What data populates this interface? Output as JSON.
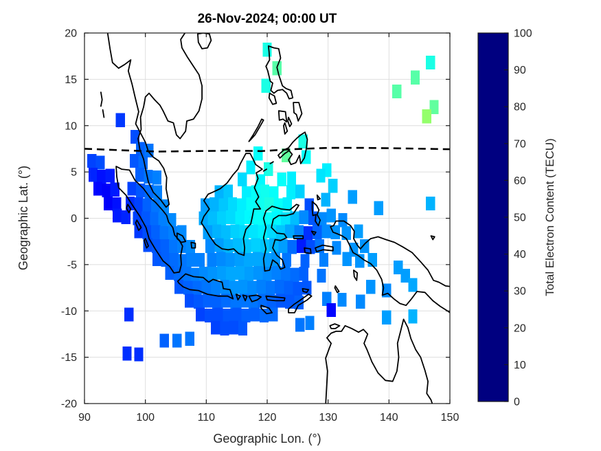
{
  "figure": {
    "title": "26-Nov-2024; 00:00 UT",
    "xlabel": "Geographic Lon. (°)",
    "ylabel": "Geographic Lat. (°)"
  },
  "axes": {
    "xlim": [
      90,
      150
    ],
    "ylim": [
      -20,
      20
    ],
    "x_ticks": [
      90,
      100,
      110,
      120,
      130,
      140,
      150
    ],
    "y_ticks": [
      20,
      15,
      10,
      5,
      0,
      -5,
      -10,
      -15,
      -20
    ],
    "grid": true
  },
  "colorbar": {
    "label": "Total Electron Content (TECU)",
    "min": 0,
    "max": 100,
    "ticks": [
      0,
      10,
      20,
      30,
      40,
      50,
      60,
      70,
      80,
      90,
      100
    ],
    "colormap": "jet"
  },
  "colors": {
    "background": "#ffffff",
    "grid": "#dedede",
    "coastline": "#000000",
    "dashed_line": "#000000",
    "axis_box": "#1a1a1a",
    "tick_text": "#262626"
  },
  "chart_data": {
    "type": "heatmap",
    "title": "26-Nov-2024; 00:00 UT",
    "xlabel": "Geographic Lon. (°)",
    "ylabel": "Geographic Lat. (°)",
    "value_label": "Total Electron Content (TECU)",
    "value_range": [
      0,
      100
    ],
    "cell_size_deg": 1.5,
    "legend_position": "right-colorbar",
    "dashed_line_note": "magnetic dip equator",
    "dashed_line": [
      [
        90,
        7.5
      ],
      [
        96,
        7.35
      ],
      [
        102,
        7.2
      ],
      [
        108,
        7.25
      ],
      [
        114,
        7.3
      ],
      [
        119,
        7.25
      ],
      [
        124,
        7.45
      ],
      [
        130,
        7.6
      ],
      [
        136,
        7.6
      ],
      [
        142,
        7.55
      ],
      [
        150,
        7.45
      ]
    ],
    "cells_format": [
      "lon_deg",
      "lat_deg",
      "tecu"
    ],
    "cells": [
      [
        120.0,
        18.2,
        40
      ],
      [
        146.8,
        16.8,
        40
      ],
      [
        121.6,
        16.2,
        46
      ],
      [
        144.3,
        15.2,
        46
      ],
      [
        119.8,
        14.3,
        40
      ],
      [
        141.3,
        13.7,
        46
      ],
      [
        147.4,
        12.0,
        47
      ],
      [
        146.2,
        11.0,
        52
      ],
      [
        95.9,
        10.6,
        18
      ],
      [
        98.3,
        8.8,
        20
      ],
      [
        125.9,
        8.3,
        40
      ],
      [
        99.2,
        7.5,
        22
      ],
      [
        100.6,
        7.3,
        24
      ],
      [
        118.5,
        7.0,
        38
      ],
      [
        123.1,
        6.8,
        47
      ],
      [
        126.4,
        6.6,
        38
      ],
      [
        91.2,
        6.2,
        19
      ],
      [
        92.6,
        6.0,
        20
      ],
      [
        98.2,
        6.2,
        21
      ],
      [
        99.6,
        6.0,
        23
      ],
      [
        117.3,
        5.5,
        36
      ],
      [
        120.2,
        5.3,
        40
      ],
      [
        129.8,
        5.2,
        36
      ],
      [
        91.4,
        4.7,
        16
      ],
      [
        92.8,
        4.5,
        14
      ],
      [
        94.2,
        4.6,
        15
      ],
      [
        99.1,
        4.7,
        22
      ],
      [
        100.5,
        4.5,
        24
      ],
      [
        101.9,
        4.4,
        25
      ],
      [
        115.9,
        4.2,
        34
      ],
      [
        118.9,
        4.0,
        37
      ],
      [
        122.4,
        4.2,
        38
      ],
      [
        124.0,
        4.3,
        36
      ],
      [
        128.8,
        4.6,
        35
      ],
      [
        92.2,
        3.2,
        13
      ],
      [
        93.6,
        3.0,
        12
      ],
      [
        95.0,
        3.1,
        15
      ],
      [
        97.8,
        3.2,
        19
      ],
      [
        99.2,
        3.0,
        21
      ],
      [
        100.6,
        2.9,
        23
      ],
      [
        102.0,
        2.8,
        25
      ],
      [
        112.1,
        2.8,
        30
      ],
      [
        113.6,
        2.9,
        32
      ],
      [
        116.6,
        2.7,
        36
      ],
      [
        118.1,
        2.8,
        38
      ],
      [
        119.6,
        2.9,
        39
      ],
      [
        121.1,
        2.7,
        38
      ],
      [
        123.9,
        2.8,
        36
      ],
      [
        125.4,
        2.9,
        33
      ],
      [
        130.8,
        3.5,
        33
      ],
      [
        93.9,
        1.6,
        12
      ],
      [
        95.3,
        1.5,
        14
      ],
      [
        97.5,
        1.6,
        17
      ],
      [
        98.9,
        1.5,
        19
      ],
      [
        100.3,
        1.4,
        22
      ],
      [
        101.7,
        1.3,
        24
      ],
      [
        103.1,
        1.3,
        26
      ],
      [
        109.8,
        1.4,
        28
      ],
      [
        111.3,
        1.5,
        30
      ],
      [
        112.8,
        1.4,
        32
      ],
      [
        114.3,
        1.5,
        34
      ],
      [
        115.8,
        1.4,
        36
      ],
      [
        117.3,
        1.5,
        38
      ],
      [
        118.8,
        1.4,
        39
      ],
      [
        120.3,
        1.5,
        40
      ],
      [
        121.8,
        1.4,
        38
      ],
      [
        123.3,
        1.5,
        36
      ],
      [
        126.9,
        1.4,
        20
      ],
      [
        129.6,
        2.0,
        30
      ],
      [
        134.0,
        2.3,
        28
      ],
      [
        138.3,
        1.1,
        28
      ],
      [
        146.8,
        1.6,
        30
      ],
      [
        95.4,
        0.3,
        15
      ],
      [
        96.8,
        0.1,
        16
      ],
      [
        98.7,
        0.0,
        19
      ],
      [
        100.1,
        0.0,
        21
      ],
      [
        101.5,
        -0.1,
        23
      ],
      [
        102.9,
        -0.1,
        25
      ],
      [
        104.3,
        -0.2,
        26
      ],
      [
        109.5,
        0.0,
        29
      ],
      [
        111.0,
        0.0,
        31
      ],
      [
        112.5,
        0.0,
        33
      ],
      [
        114.0,
        0.1,
        34
      ],
      [
        115.5,
        0.0,
        36
      ],
      [
        117.0,
        0.1,
        37
      ],
      [
        118.5,
        0.0,
        38
      ],
      [
        120.0,
        -0.1,
        38
      ],
      [
        121.5,
        0.0,
        37
      ],
      [
        123.0,
        -0.1,
        35
      ],
      [
        124.5,
        0.0,
        31
      ],
      [
        126.0,
        0.1,
        26
      ],
      [
        127.5,
        0.0,
        21
      ],
      [
        129.0,
        -0.1,
        26
      ],
      [
        130.5,
        0.3,
        27
      ],
      [
        132.4,
        -0.2,
        26
      ],
      [
        98.9,
        -1.4,
        18
      ],
      [
        100.3,
        -1.5,
        20
      ],
      [
        101.7,
        -1.5,
        22
      ],
      [
        103.1,
        -1.6,
        24
      ],
      [
        104.5,
        -1.6,
        25
      ],
      [
        106.0,
        -1.5,
        26
      ],
      [
        110.2,
        -1.5,
        28
      ],
      [
        111.7,
        -1.4,
        30
      ],
      [
        113.2,
        -1.5,
        31
      ],
      [
        114.7,
        -1.4,
        33
      ],
      [
        116.2,
        -1.5,
        34
      ],
      [
        117.7,
        -1.4,
        35
      ],
      [
        119.2,
        -1.5,
        36
      ],
      [
        120.7,
        -1.4,
        34
      ],
      [
        122.2,
        -1.5,
        32
      ],
      [
        123.7,
        -1.4,
        29
      ],
      [
        125.2,
        -1.5,
        25
      ],
      [
        126.7,
        -1.6,
        17
      ],
      [
        128.2,
        -1.5,
        22
      ],
      [
        129.7,
        -1.4,
        26
      ],
      [
        131.2,
        -1.5,
        27
      ],
      [
        133.0,
        -1.6,
        27
      ],
      [
        135.0,
        -1.4,
        28
      ],
      [
        100.4,
        -2.9,
        20
      ],
      [
        101.8,
        -3.0,
        21
      ],
      [
        103.2,
        -3.0,
        22
      ],
      [
        104.6,
        -3.1,
        24
      ],
      [
        106.0,
        -3.0,
        25
      ],
      [
        107.4,
        -3.1,
        26
      ],
      [
        110.6,
        -3.0,
        26
      ],
      [
        112.1,
        -2.9,
        28
      ],
      [
        113.6,
        -3.0,
        30
      ],
      [
        115.1,
        -2.9,
        31
      ],
      [
        116.6,
        -3.0,
        32
      ],
      [
        118.1,
        -2.9,
        33
      ],
      [
        119.6,
        -3.0,
        32
      ],
      [
        121.1,
        -2.9,
        30
      ],
      [
        122.6,
        -3.0,
        28
      ],
      [
        124.1,
        -3.1,
        23
      ],
      [
        125.6,
        -3.0,
        15
      ],
      [
        127.1,
        -3.1,
        20
      ],
      [
        128.6,
        -3.0,
        24
      ],
      [
        131.4,
        -3.2,
        26
      ],
      [
        134.2,
        -3.4,
        27
      ],
      [
        136.0,
        -3.0,
        27
      ],
      [
        101.9,
        -4.4,
        21
      ],
      [
        103.3,
        -4.5,
        22
      ],
      [
        104.7,
        -4.5,
        23
      ],
      [
        106.1,
        -4.6,
        24
      ],
      [
        107.5,
        -4.5,
        25
      ],
      [
        109.0,
        -4.5,
        25
      ],
      [
        110.9,
        -4.5,
        25
      ],
      [
        112.4,
        -4.4,
        26
      ],
      [
        113.9,
        -4.5,
        27
      ],
      [
        115.4,
        -4.4,
        28
      ],
      [
        116.9,
        -4.5,
        29
      ],
      [
        118.4,
        -4.4,
        29
      ],
      [
        119.9,
        -4.5,
        28
      ],
      [
        121.4,
        -4.4,
        27
      ],
      [
        123.2,
        -4.5,
        24
      ],
      [
        126.2,
        -4.6,
        22
      ],
      [
        129.3,
        -4.5,
        25
      ],
      [
        133.1,
        -4.4,
        27
      ],
      [
        135.2,
        -4.6,
        27
      ],
      [
        137.3,
        -4.5,
        28
      ],
      [
        141.5,
        -5.3,
        28
      ],
      [
        104.0,
        -5.9,
        22
      ],
      [
        105.4,
        -6.0,
        23
      ],
      [
        106.8,
        -6.0,
        24
      ],
      [
        108.2,
        -6.1,
        25
      ],
      [
        109.6,
        -6.0,
        26
      ],
      [
        111.0,
        -6.0,
        27
      ],
      [
        112.5,
        -5.9,
        28
      ],
      [
        114.0,
        -6.0,
        29
      ],
      [
        115.5,
        -5.9,
        29
      ],
      [
        117.0,
        -6.0,
        28
      ],
      [
        118.5,
        -5.9,
        27
      ],
      [
        120.0,
        -6.0,
        26
      ],
      [
        121.5,
        -5.9,
        25
      ],
      [
        123.0,
        -6.0,
        24
      ],
      [
        124.5,
        -6.1,
        23
      ],
      [
        126.0,
        -6.0,
        22
      ],
      [
        128.9,
        -6.2,
        24
      ],
      [
        142.7,
        -6.2,
        28
      ],
      [
        105.5,
        -7.4,
        21
      ],
      [
        107.0,
        -7.5,
        22
      ],
      [
        108.5,
        -7.5,
        23
      ],
      [
        110.0,
        -7.4,
        24
      ],
      [
        111.5,
        -7.5,
        25
      ],
      [
        113.0,
        -7.4,
        26
      ],
      [
        114.5,
        -7.5,
        27
      ],
      [
        116.0,
        -7.4,
        27
      ],
      [
        117.5,
        -7.5,
        26
      ],
      [
        119.0,
        -7.4,
        25
      ],
      [
        120.5,
        -7.5,
        24
      ],
      [
        122.0,
        -7.4,
        23
      ],
      [
        123.5,
        -7.5,
        22
      ],
      [
        125.0,
        -7.6,
        21
      ],
      [
        126.5,
        -7.5,
        21
      ],
      [
        137.0,
        -7.4,
        27
      ],
      [
        139.6,
        -7.8,
        26
      ],
      [
        143.9,
        -7.2,
        29
      ],
      [
        107.2,
        -8.9,
        20
      ],
      [
        108.7,
        -9.0,
        21
      ],
      [
        110.2,
        -8.9,
        22
      ],
      [
        111.7,
        -9.0,
        22
      ],
      [
        113.2,
        -8.9,
        23
      ],
      [
        114.7,
        -9.0,
        24
      ],
      [
        116.2,
        -8.9,
        24
      ],
      [
        117.7,
        -9.0,
        24
      ],
      [
        119.2,
        -8.9,
        23
      ],
      [
        120.7,
        -9.0,
        22
      ],
      [
        122.2,
        -8.9,
        21
      ],
      [
        123.7,
        -9.0,
        21
      ],
      [
        125.2,
        -9.1,
        22
      ],
      [
        129.8,
        -8.7,
        25
      ],
      [
        132.3,
        -8.8,
        26
      ],
      [
        135.3,
        -9.0,
        26
      ],
      [
        97.3,
        -10.4,
        17
      ],
      [
        109.0,
        -10.4,
        19
      ],
      [
        110.5,
        -10.5,
        20
      ],
      [
        112.0,
        -10.4,
        20
      ],
      [
        113.5,
        -10.5,
        21
      ],
      [
        115.0,
        -10.4,
        21
      ],
      [
        116.5,
        -10.5,
        22
      ],
      [
        118.0,
        -10.4,
        22
      ],
      [
        119.5,
        -10.5,
        23
      ],
      [
        121.0,
        -10.4,
        23
      ],
      [
        130.5,
        -9.9,
        13
      ],
      [
        139.6,
        -10.7,
        28
      ],
      [
        143.9,
        -10.6,
        30
      ],
      [
        111.5,
        -11.8,
        19
      ],
      [
        113.0,
        -11.9,
        20
      ],
      [
        114.5,
        -11.8,
        20
      ],
      [
        116.0,
        -11.9,
        21
      ],
      [
        125.4,
        -11.5,
        24
      ],
      [
        127.0,
        -11.3,
        25
      ],
      [
        103.1,
        -13.2,
        22
      ],
      [
        105.2,
        -13.2,
        24
      ],
      [
        107.3,
        -13.0,
        24
      ],
      [
        97.0,
        -14.6,
        17
      ],
      [
        98.9,
        -14.7,
        17
      ]
    ]
  }
}
